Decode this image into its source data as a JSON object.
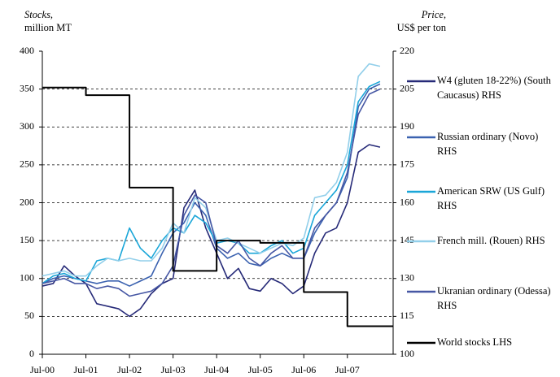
{
  "chart_data": {
    "type": "line",
    "y_label": {
      "title": "Stocks,",
      "unit": "million MT"
    },
    "y2_label": {
      "title": "Price,",
      "unit": "US$ per ton"
    },
    "xlim": [
      2000.5,
      2008.55
    ],
    "xticks": [
      {
        "value": 2000.5,
        "label": "Jul-00"
      },
      {
        "value": 2001.5,
        "label": "Jul-01"
      },
      {
        "value": 2002.5,
        "label": "Jul-02"
      },
      {
        "value": 2003.5,
        "label": "Jul-03"
      },
      {
        "value": 2004.5,
        "label": "Jul-04"
      },
      {
        "value": 2005.5,
        "label": "Jul-05"
      },
      {
        "value": 2006.5,
        "label": "Jul-06"
      },
      {
        "value": 2007.5,
        "label": "Jul-07"
      }
    ],
    "ylim": [
      0,
      400
    ],
    "yticks": [
      0,
      50,
      100,
      150,
      200,
      250,
      300,
      350,
      400
    ],
    "y2lim": [
      100,
      220
    ],
    "y2ticks": [
      100,
      115,
      130,
      145,
      160,
      175,
      190,
      205,
      220
    ],
    "grid": true,
    "series": [
      {
        "name": "W4 (gluten 18-22%) (South Caucasus) RHS",
        "color": "#262a78",
        "axis": "y2",
        "x": [
          2000.5,
          2000.75,
          2001,
          2001.25,
          2001.5,
          2001.75,
          2002,
          2002.25,
          2002.5,
          2002.75,
          2003,
          2003.25,
          2003.5,
          2003.75,
          2004,
          2004.25,
          2004.5,
          2004.75,
          2005,
          2005.25,
          2005.5,
          2005.75,
          2006,
          2006.25,
          2006.5,
          2006.75,
          2007,
          2007.25,
          2007.5,
          2007.75,
          2008,
          2008.25
        ],
        "values": [
          127,
          128,
          135,
          131,
          128,
          120,
          119,
          118,
          115,
          118,
          124,
          128,
          130,
          158,
          165,
          150,
          140,
          130,
          134,
          126,
          125,
          130,
          128,
          124,
          127,
          140,
          148,
          150,
          160,
          180,
          183,
          182
        ]
      },
      {
        "name": "Russian ordinary (Novo) RHS",
        "color": "#3b62b0",
        "axis": "y2",
        "x": [
          2000.5,
          2000.75,
          2001,
          2001.25,
          2001.5,
          2001.75,
          2002,
          2002.25,
          2002.5,
          2002.75,
          2003,
          2003.25,
          2003.5,
          2003.75,
          2004,
          2004.25,
          2004.5,
          2004.75,
          2005,
          2005.25,
          2005.5,
          2005.75,
          2006,
          2006.25,
          2006.5,
          2006.75,
          2007,
          2007.25,
          2007.5,
          2007.75,
          2008,
          2008.25
        ],
        "values": [
          128,
          130,
          131,
          130,
          129,
          128,
          129,
          129,
          127,
          129,
          131,
          140,
          148,
          152,
          160,
          155,
          142,
          138,
          140,
          136,
          135,
          138,
          140,
          138,
          138,
          148,
          155,
          160,
          170,
          198,
          205,
          207
        ]
      },
      {
        "name": "American SRW (US Gulf) RHS",
        "color": "#1aa6d8",
        "axis": "y2",
        "x": [
          2000.5,
          2000.75,
          2001,
          2001.25,
          2001.5,
          2001.75,
          2002,
          2002.25,
          2002.5,
          2002.75,
          2003,
          2003.25,
          2003.5,
          2003.75,
          2004,
          2004.25,
          2004.5,
          2004.75,
          2005,
          2005.25,
          2005.5,
          2005.75,
          2006,
          2006.25,
          2006.5,
          2006.75,
          2007,
          2007.25,
          2007.5,
          2007.75,
          2008,
          2008.25
        ],
        "values": [
          128,
          131,
          132,
          130,
          129,
          137,
          138,
          137,
          150,
          142,
          138,
          145,
          150,
          148,
          155,
          152,
          144,
          145,
          144,
          140,
          140,
          143,
          145,
          140,
          142,
          155,
          160,
          165,
          175,
          200,
          206,
          208
        ]
      },
      {
        "name": "French mill. (Rouen) RHS",
        "color": "#92cfea",
        "axis": "y2",
        "x": [
          2000.5,
          2000.75,
          2001,
          2001.25,
          2001.5,
          2001.75,
          2002,
          2002.25,
          2002.5,
          2002.75,
          2003,
          2003.25,
          2003.5,
          2003.75,
          2004,
          2004.25,
          2004.5,
          2004.75,
          2005,
          2005.25,
          2005.5,
          2005.75,
          2006,
          2006.25,
          2006.5,
          2006.75,
          2007,
          2007.25,
          2007.5,
          2007.75,
          2008,
          2008.25
        ],
        "values": [
          131,
          132,
          133,
          131,
          131,
          135,
          138,
          137,
          138,
          137,
          137,
          142,
          152,
          148,
          162,
          158,
          145,
          146,
          144,
          142,
          140,
          142,
          144,
          143,
          146,
          162,
          163,
          168,
          180,
          210,
          215,
          214
        ]
      },
      {
        "name": "Ukranian ordinary (Odessa) RHS",
        "color": "#4657a4",
        "axis": "y2",
        "x": [
          2000.5,
          2000.75,
          2001,
          2001.25,
          2001.5,
          2001.75,
          2002,
          2002.25,
          2002.5,
          2002.75,
          2003,
          2003.25,
          2003.5,
          2003.75,
          2004,
          2004.25,
          2004.5,
          2004.75,
          2005,
          2005.25,
          2005.5,
          2005.75,
          2006,
          2006.25,
          2006.5,
          2006.75,
          2007,
          2007.25,
          2007.5,
          2007.75,
          2008,
          2008.25
        ],
        "values": [
          128,
          129,
          130,
          128,
          128,
          126,
          127,
          126,
          123,
          124,
          125,
          128,
          135,
          155,
          163,
          160,
          143,
          140,
          145,
          138,
          135,
          140,
          143,
          138,
          138,
          150,
          155,
          160,
          172,
          195,
          203,
          205
        ]
      },
      {
        "name": "World stocks LHS",
        "color": "#000000",
        "step": true,
        "x": [
          2000.5,
          2001.5,
          2002.5,
          2003.5,
          2004.5,
          2005.5,
          2006.5,
          2007.5,
          2008.55
        ],
        "values": [
          352,
          342,
          220,
          110,
          150,
          147,
          82,
          37,
          37
        ]
      }
    ]
  }
}
